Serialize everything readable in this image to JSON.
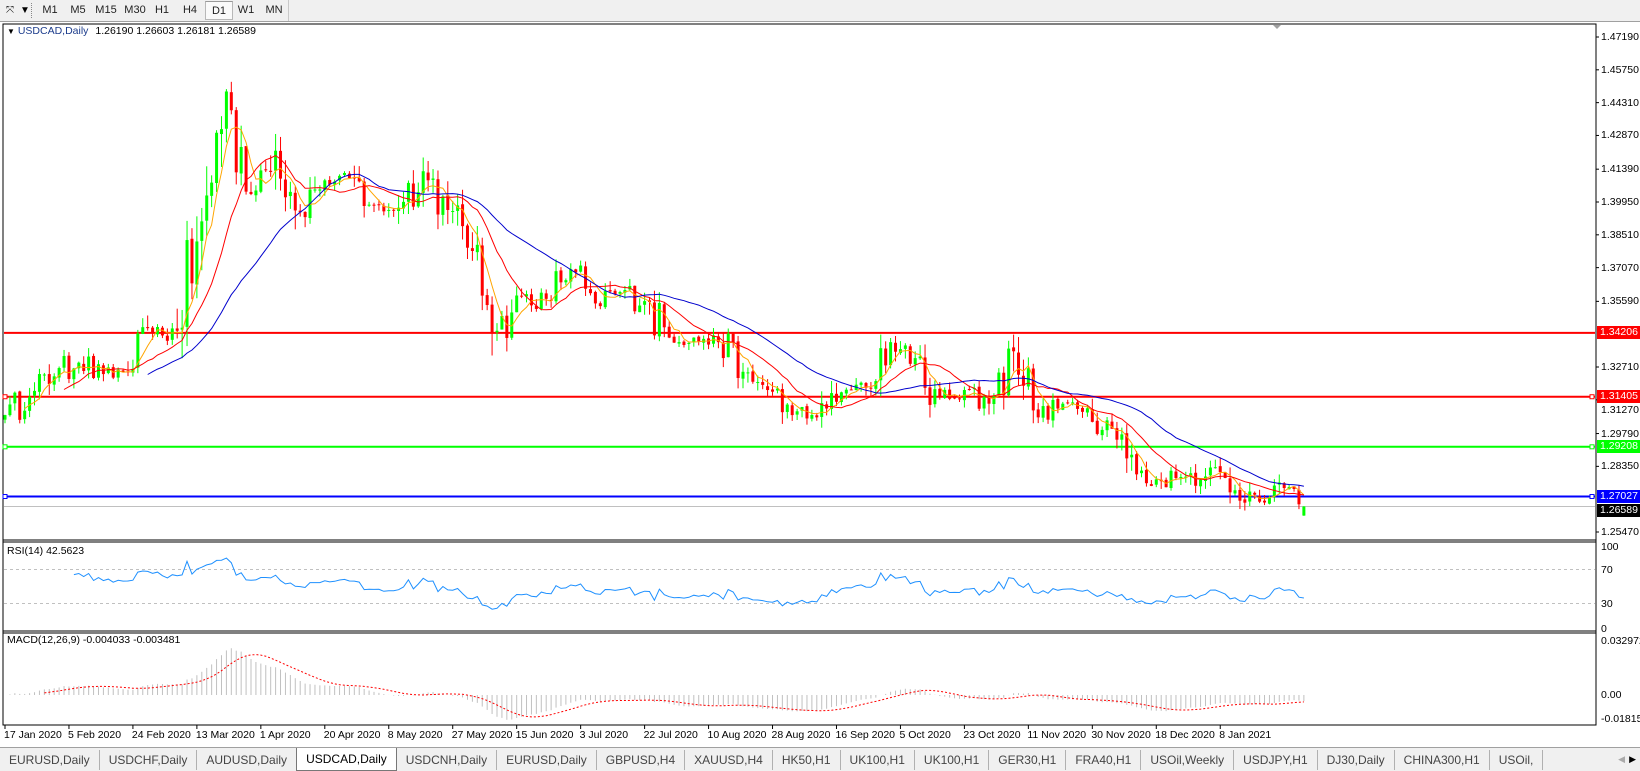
{
  "toolbar": {
    "tool_icon": "line-tool-icon",
    "timeframes": [
      {
        "label": "M1",
        "active": false
      },
      {
        "label": "M5",
        "active": false
      },
      {
        "label": "M15",
        "active": false
      },
      {
        "label": "M30",
        "active": false
      },
      {
        "label": "H1",
        "active": false
      },
      {
        "label": "H4",
        "active": false
      },
      {
        "label": "D1",
        "active": true
      },
      {
        "label": "W1",
        "active": false
      },
      {
        "label": "MN",
        "active": false
      }
    ]
  },
  "chart_header": {
    "symbol": "USDCAD,Daily",
    "ohlc": "1.26190 1.26603 1.26181 1.26589"
  },
  "price_axis": [
    "1.47190",
    "1.45750",
    "1.44310",
    "1.42870",
    "1.41390",
    "1.39950",
    "1.38510",
    "1.37070",
    "1.35590",
    "1.32710",
    "1.31270",
    "1.29790",
    "1.28350",
    "1.25470"
  ],
  "horizontal_lines": [
    {
      "price": "1.34206",
      "color": "#ff0000",
      "markers": false
    },
    {
      "price": "1.31405",
      "color": "#ff0000",
      "markers": true
    },
    {
      "price": "1.29208",
      "color": "#00ff00",
      "markers": true
    },
    {
      "price": "1.27027",
      "color": "#0000ff",
      "markers": true
    }
  ],
  "bid_line": {
    "price": "1.26589",
    "color": "#c0c0c0",
    "tag_color": "#000000"
  },
  "colors": {
    "bull": "#00ff00",
    "bear": "#ff0000",
    "ma_fast": "#ffa500",
    "ma_mid": "#ff0000",
    "ma_slow": "#0000cd",
    "rsi": "#1e90ff",
    "macd_hist": "#c0c0c0",
    "macd_signal": "#ff0000"
  },
  "rsi": {
    "title": "RSI(14) 42.5623",
    "levels": [
      "100",
      "70",
      "30",
      "0"
    ]
  },
  "macd": {
    "title": "MACD(12,26,9) -0.004033 -0.003481",
    "levels": [
      "0.032972",
      "0.00",
      "-0.018154"
    ]
  },
  "date_axis": [
    "17 Jan 2020",
    "5 Feb 2020",
    "24 Feb 2020",
    "13 Mar 2020",
    "1 Apr 2020",
    "20 Apr 2020",
    "8 May 2020",
    "27 May 2020",
    "15 Jun 2020",
    "3 Jul 2020",
    "22 Jul 2020",
    "10 Aug 2020",
    "28 Aug 2020",
    "16 Sep 2020",
    "5 Oct 2020",
    "23 Oct 2020",
    "11 Nov 2020",
    "30 Nov 2020",
    "18 Dec 2020",
    "8 Jan 2021"
  ],
  "chart_data": {
    "type": "candlestick",
    "symbol": "USDCAD",
    "timeframe": "Daily",
    "start_date": "2020-01-17",
    "end_date": "2021-01-21",
    "ylim": [
      1.2512,
      1.4776
    ],
    "last_bar": {
      "open": 1.2619,
      "high": 1.26603,
      "low": 1.26181,
      "close": 1.26589
    },
    "weekly_closes": [
      {
        "date": "2020-01-17",
        "close": 1.306
      },
      {
        "date": "2020-01-24",
        "close": 1.314
      },
      {
        "date": "2020-01-31",
        "close": 1.323
      },
      {
        "date": "2020-02-07",
        "close": 1.329
      },
      {
        "date": "2020-02-14",
        "close": 1.324
      },
      {
        "date": "2020-02-21",
        "close": 1.325
      },
      {
        "date": "2020-02-28",
        "close": 1.342
      },
      {
        "date": "2020-03-06",
        "close": 1.343
      },
      {
        "date": "2020-03-13",
        "close": 1.391
      },
      {
        "date": "2020-03-20",
        "close": 1.448
      },
      {
        "date": "2020-03-27",
        "close": 1.403
      },
      {
        "date": "2020-04-03",
        "close": 1.422
      },
      {
        "date": "2020-04-10",
        "close": 1.395
      },
      {
        "date": "2020-04-17",
        "close": 1.409
      },
      {
        "date": "2020-04-24",
        "close": 1.41
      },
      {
        "date": "2020-05-01",
        "close": 1.398
      },
      {
        "date": "2020-05-08",
        "close": 1.397
      },
      {
        "date": "2020-05-15",
        "close": 1.413
      },
      {
        "date": "2020-05-22",
        "close": 1.396
      },
      {
        "date": "2020-05-29",
        "close": 1.378
      },
      {
        "date": "2020-06-05",
        "close": 1.343
      },
      {
        "date": "2020-06-12",
        "close": 1.358
      },
      {
        "date": "2020-06-19",
        "close": 1.357
      },
      {
        "date": "2020-06-26",
        "close": 1.37
      },
      {
        "date": "2020-07-03",
        "close": 1.355
      },
      {
        "date": "2020-07-10",
        "close": 1.36
      },
      {
        "date": "2020-07-17",
        "close": 1.356
      },
      {
        "date": "2020-07-24",
        "close": 1.34
      },
      {
        "date": "2020-07-31",
        "close": 1.34
      },
      {
        "date": "2020-08-07",
        "close": 1.338
      },
      {
        "date": "2020-08-14",
        "close": 1.325
      },
      {
        "date": "2020-08-21",
        "close": 1.317
      },
      {
        "date": "2020-08-28",
        "close": 1.306
      },
      {
        "date": "2020-09-04",
        "close": 1.305
      },
      {
        "date": "2020-09-11",
        "close": 1.316
      },
      {
        "date": "2020-09-18",
        "close": 1.318
      },
      {
        "date": "2020-09-25",
        "close": 1.338
      },
      {
        "date": "2020-10-02",
        "close": 1.331
      },
      {
        "date": "2020-10-09",
        "close": 1.314
      },
      {
        "date": "2020-10-16",
        "close": 1.317
      },
      {
        "date": "2020-10-23",
        "close": 1.311
      },
      {
        "date": "2020-10-30",
        "close": 1.334
      },
      {
        "date": "2020-11-06",
        "close": 1.305
      },
      {
        "date": "2020-11-13",
        "close": 1.311
      },
      {
        "date": "2020-11-20",
        "close": 1.309
      },
      {
        "date": "2020-11-27",
        "close": 1.3
      },
      {
        "date": "2020-12-04",
        "close": 1.28
      },
      {
        "date": "2020-12-11",
        "close": 1.277
      },
      {
        "date": "2020-12-18",
        "close": 1.279
      },
      {
        "date": "2020-12-25",
        "close": 1.283
      },
      {
        "date": "2021-01-01",
        "close": 1.273
      },
      {
        "date": "2021-01-08",
        "close": 1.268
      },
      {
        "date": "2021-01-15",
        "close": 1.274
      },
      {
        "date": "2021-01-21",
        "close": 1.26589
      }
    ]
  },
  "tabs": [
    {
      "label": "EURUSD,Daily",
      "active": false
    },
    {
      "label": "USDCHF,Daily",
      "active": false
    },
    {
      "label": "AUDUSD,Daily",
      "active": false
    },
    {
      "label": "USDCAD,Daily",
      "active": true
    },
    {
      "label": "USDCNH,Daily",
      "active": false
    },
    {
      "label": "EURUSD,Daily",
      "active": false
    },
    {
      "label": "GBPUSD,H4",
      "active": false
    },
    {
      "label": "XAUUSD,H4",
      "active": false
    },
    {
      "label": "HK50,H1",
      "active": false
    },
    {
      "label": "UK100,H1",
      "active": false
    },
    {
      "label": "UK100,H1",
      "active": false
    },
    {
      "label": "GER30,H1",
      "active": false
    },
    {
      "label": "FRA40,H1",
      "active": false
    },
    {
      "label": "USOil,Weekly",
      "active": false
    },
    {
      "label": "USDJPY,H1",
      "active": false
    },
    {
      "label": "DJ30,Daily",
      "active": false
    },
    {
      "label": "CHINA300,H1",
      "active": false
    },
    {
      "label": "USOil,",
      "active": false
    }
  ]
}
